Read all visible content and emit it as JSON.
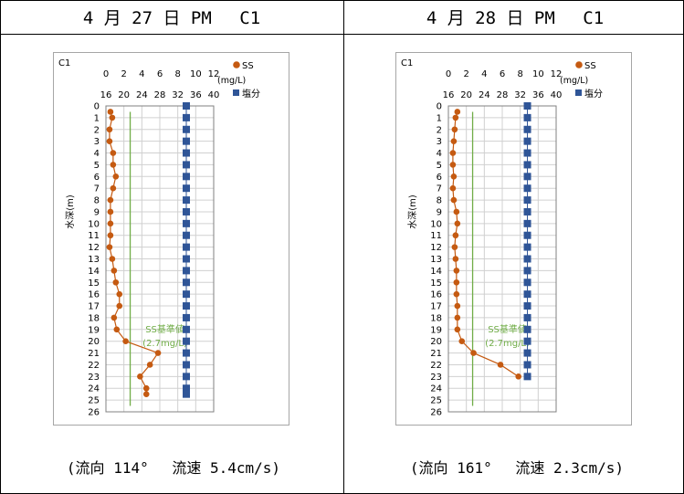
{
  "panels": [
    {
      "header": "4 月 27 日 PM　 C1",
      "footer": "(流向 114°　 流速 5.4cm/s)"
    },
    {
      "header": "4 月 28 日 PM　 C1",
      "footer": "(流向 161°　 流速 2.3cm/s)"
    }
  ],
  "colors": {
    "ss": "#c55a11",
    "salinity": "#2f5597",
    "standard": "#70ad47",
    "grid": "#d0d0d0"
  },
  "chart_data": [
    {
      "type": "line",
      "station_label": "C1",
      "ylabel": "水深(m)",
      "y_axis": {
        "ticks": [
          0,
          1,
          2,
          3,
          4,
          5,
          6,
          7,
          8,
          9,
          10,
          11,
          12,
          13,
          14,
          15,
          16,
          17,
          18,
          19,
          20,
          21,
          22,
          23,
          24,
          25,
          26
        ],
        "ylim": [
          0,
          26
        ],
        "inverted": true
      },
      "top_axis_ss": {
        "ticks": [
          "0",
          "2",
          "4",
          "6",
          "8",
          "10",
          "12"
        ],
        "range": [
          0,
          12
        ],
        "unit": "(mg/L)"
      },
      "top_axis_salinity": {
        "ticks": [
          "16",
          "20",
          "24",
          "28",
          "32",
          "36",
          "40"
        ],
        "range": [
          16,
          40
        ]
      },
      "grid": true,
      "legend": {
        "position": "top-right",
        "items": [
          "SS",
          "塩分"
        ]
      },
      "standard_line": {
        "value": 2.7,
        "label_line1": "SS基準値",
        "label_line2": "(2.7mg/L)"
      },
      "series": [
        {
          "name": "SS",
          "depth": [
            0.5,
            1,
            2,
            3,
            4,
            5,
            6,
            7,
            8,
            9,
            10,
            11,
            12,
            13,
            14,
            15,
            16,
            17,
            18,
            19,
            20,
            21,
            22,
            23,
            24,
            24.5
          ],
          "values": [
            0.5,
            0.7,
            0.4,
            0.4,
            0.8,
            0.8,
            1.1,
            0.8,
            0.5,
            0.5,
            0.5,
            0.5,
            0.4,
            0.7,
            0.9,
            1.1,
            1.5,
            1.5,
            0.9,
            1.2,
            2.2,
            5.8,
            4.9,
            3.8,
            4.5,
            4.5
          ]
        },
        {
          "name": "塩分",
          "depth": [
            0,
            1,
            2,
            3,
            4,
            5,
            6,
            7,
            8,
            9,
            10,
            11,
            12,
            13,
            14,
            15,
            16,
            17,
            18,
            19,
            20,
            21,
            22,
            23,
            24,
            24.5
          ],
          "values": [
            33.9,
            33.9,
            33.9,
            33.9,
            33.9,
            33.9,
            33.9,
            33.9,
            33.9,
            33.9,
            33.9,
            33.9,
            33.9,
            33.9,
            33.9,
            33.9,
            33.9,
            33.9,
            33.9,
            33.9,
            33.9,
            33.9,
            33.9,
            33.9,
            33.9,
            33.9
          ]
        }
      ]
    },
    {
      "type": "line",
      "station_label": "C1",
      "ylabel": "水深(m)",
      "y_axis": {
        "ticks": [
          0,
          1,
          2,
          3,
          4,
          5,
          6,
          7,
          8,
          9,
          10,
          11,
          12,
          13,
          14,
          15,
          16,
          17,
          18,
          19,
          20,
          21,
          22,
          23,
          24,
          25,
          26
        ],
        "ylim": [
          0,
          26
        ],
        "inverted": true
      },
      "top_axis_ss": {
        "ticks": [
          "0",
          "2",
          "4",
          "6",
          "8",
          "10",
          "12"
        ],
        "range": [
          0,
          12
        ],
        "unit": "(mg/L)"
      },
      "top_axis_salinity": {
        "ticks": [
          "16",
          "20",
          "24",
          "28",
          "32",
          "36",
          "40"
        ],
        "range": [
          16,
          40
        ]
      },
      "grid": true,
      "legend": {
        "position": "top-right",
        "items": [
          "SS",
          "塩分"
        ]
      },
      "standard_line": {
        "value": 2.7,
        "label_line1": "SS基準値",
        "label_line2": "(2.7mg/L)"
      },
      "series": [
        {
          "name": "SS",
          "depth": [
            0.5,
            1,
            2,
            3,
            4,
            5,
            6,
            7,
            8,
            9,
            10,
            11,
            12,
            13,
            14,
            15,
            16,
            17,
            18,
            19,
            20,
            21,
            22,
            23
          ],
          "values": [
            1.0,
            0.8,
            0.7,
            0.6,
            0.5,
            0.5,
            0.6,
            0.5,
            0.6,
            0.9,
            1.0,
            0.8,
            0.7,
            0.8,
            0.9,
            0.9,
            0.9,
            1.0,
            1.0,
            1.0,
            1.5,
            2.8,
            5.8,
            7.8
          ]
        },
        {
          "name": "塩分",
          "depth": [
            0,
            1,
            2,
            3,
            4,
            5,
            6,
            7,
            8,
            9,
            10,
            11,
            12,
            13,
            14,
            15,
            16,
            17,
            18,
            19,
            20,
            21,
            22,
            23
          ],
          "values": [
            33.6,
            33.6,
            33.6,
            33.6,
            33.6,
            33.6,
            33.6,
            33.6,
            33.6,
            33.6,
            33.6,
            33.6,
            33.6,
            33.6,
            33.6,
            33.6,
            33.6,
            33.6,
            33.6,
            33.6,
            33.6,
            33.6,
            33.6,
            33.6
          ]
        }
      ]
    }
  ]
}
